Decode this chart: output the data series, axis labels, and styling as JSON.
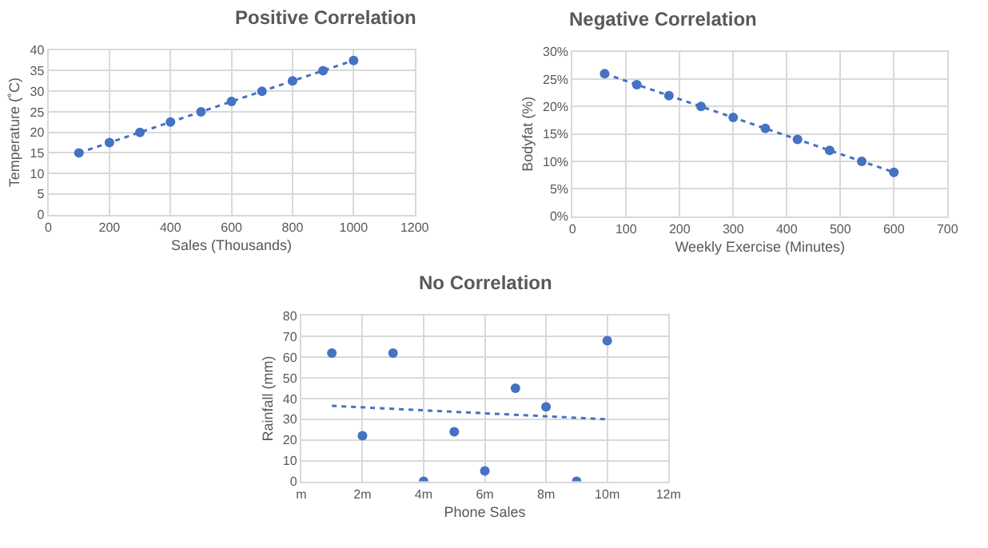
{
  "chart_data": [
    {
      "type": "scatter",
      "title": "Positive Correlation",
      "xlabel": "Sales (Thousands)",
      "ylabel": "Temperature (˚C)",
      "xlim": [
        0,
        1200
      ],
      "xticks": [
        0,
        200,
        400,
        600,
        800,
        1000,
        1200
      ],
      "ylim": [
        0,
        40
      ],
      "yticks": [
        0,
        5,
        10,
        15,
        20,
        25,
        30,
        35,
        40
      ],
      "grid": true,
      "marker": "circle",
      "series": [
        {
          "color": "#4472c4",
          "x": [
            100,
            200,
            300,
            400,
            500,
            600,
            700,
            800,
            900,
            1000
          ],
          "values": [
            15,
            17.5,
            20,
            22.5,
            25,
            27.5,
            30,
            32.5,
            35,
            37.5
          ]
        },
        {
          "type": "line",
          "color": "#4472c4",
          "line_style": "dotted",
          "marker": "none",
          "x": [
            100,
            1000
          ],
          "values": [
            15,
            37.5
          ]
        }
      ]
    },
    {
      "type": "scatter",
      "title": "Negative Correlation",
      "xlabel": "Weekly Exercise (Minutes)",
      "ylabel": "Bodyfat (%)",
      "xlim": [
        0,
        700
      ],
      "xticks": [
        0,
        100,
        200,
        300,
        400,
        500,
        600,
        700
      ],
      "ylim": [
        0,
        30
      ],
      "yticks": [
        {
          "value": 0,
          "label": "0%"
        },
        {
          "value": 5,
          "label": "5%"
        },
        {
          "value": 10,
          "label": "10%"
        },
        {
          "value": 15,
          "label": "15%"
        },
        {
          "value": 20,
          "label": "20%"
        },
        {
          "value": 25,
          "label": "25%"
        },
        {
          "value": 30,
          "label": "30%"
        }
      ],
      "grid": true,
      "marker": "circle",
      "series": [
        {
          "color": "#4472c4",
          "x": [
            60,
            120,
            180,
            240,
            300,
            360,
            420,
            480,
            540,
            600
          ],
          "values": [
            26,
            24,
            22,
            20,
            18,
            16,
            14,
            12,
            10,
            8
          ]
        },
        {
          "type": "line",
          "color": "#4472c4",
          "line_style": "dotted",
          "marker": "none",
          "x": [
            60,
            600
          ],
          "values": [
            26,
            8
          ]
        }
      ]
    },
    {
      "type": "scatter",
      "title": "No Correlation",
      "xlabel": "Phone Sales",
      "ylabel": "Rainfall (mm)",
      "xlim": [
        0,
        12
      ],
      "xticks": [
        {
          "value": 0,
          "label": "m"
        },
        {
          "value": 2,
          "label": "2m"
        },
        {
          "value": 4,
          "label": "4m"
        },
        {
          "value": 6,
          "label": "6m"
        },
        {
          "value": 8,
          "label": "8m"
        },
        {
          "value": 10,
          "label": "10m"
        },
        {
          "value": 12,
          "label": "12m"
        }
      ],
      "ylim": [
        0,
        80
      ],
      "yticks": [
        0,
        10,
        20,
        30,
        40,
        50,
        60,
        70,
        80
      ],
      "grid": true,
      "marker": "circle",
      "series": [
        {
          "color": "#4472c4",
          "x": [
            1,
            2,
            3,
            4,
            5,
            6,
            7,
            8,
            9,
            10
          ],
          "values": [
            62,
            22,
            62,
            0,
            24,
            5,
            45,
            36,
            0,
            68
          ]
        },
        {
          "type": "line",
          "color": "#4472c4",
          "line_style": "dotted",
          "marker": "none",
          "x": [
            1,
            10
          ],
          "values": [
            36.5,
            30
          ]
        }
      ]
    }
  ]
}
